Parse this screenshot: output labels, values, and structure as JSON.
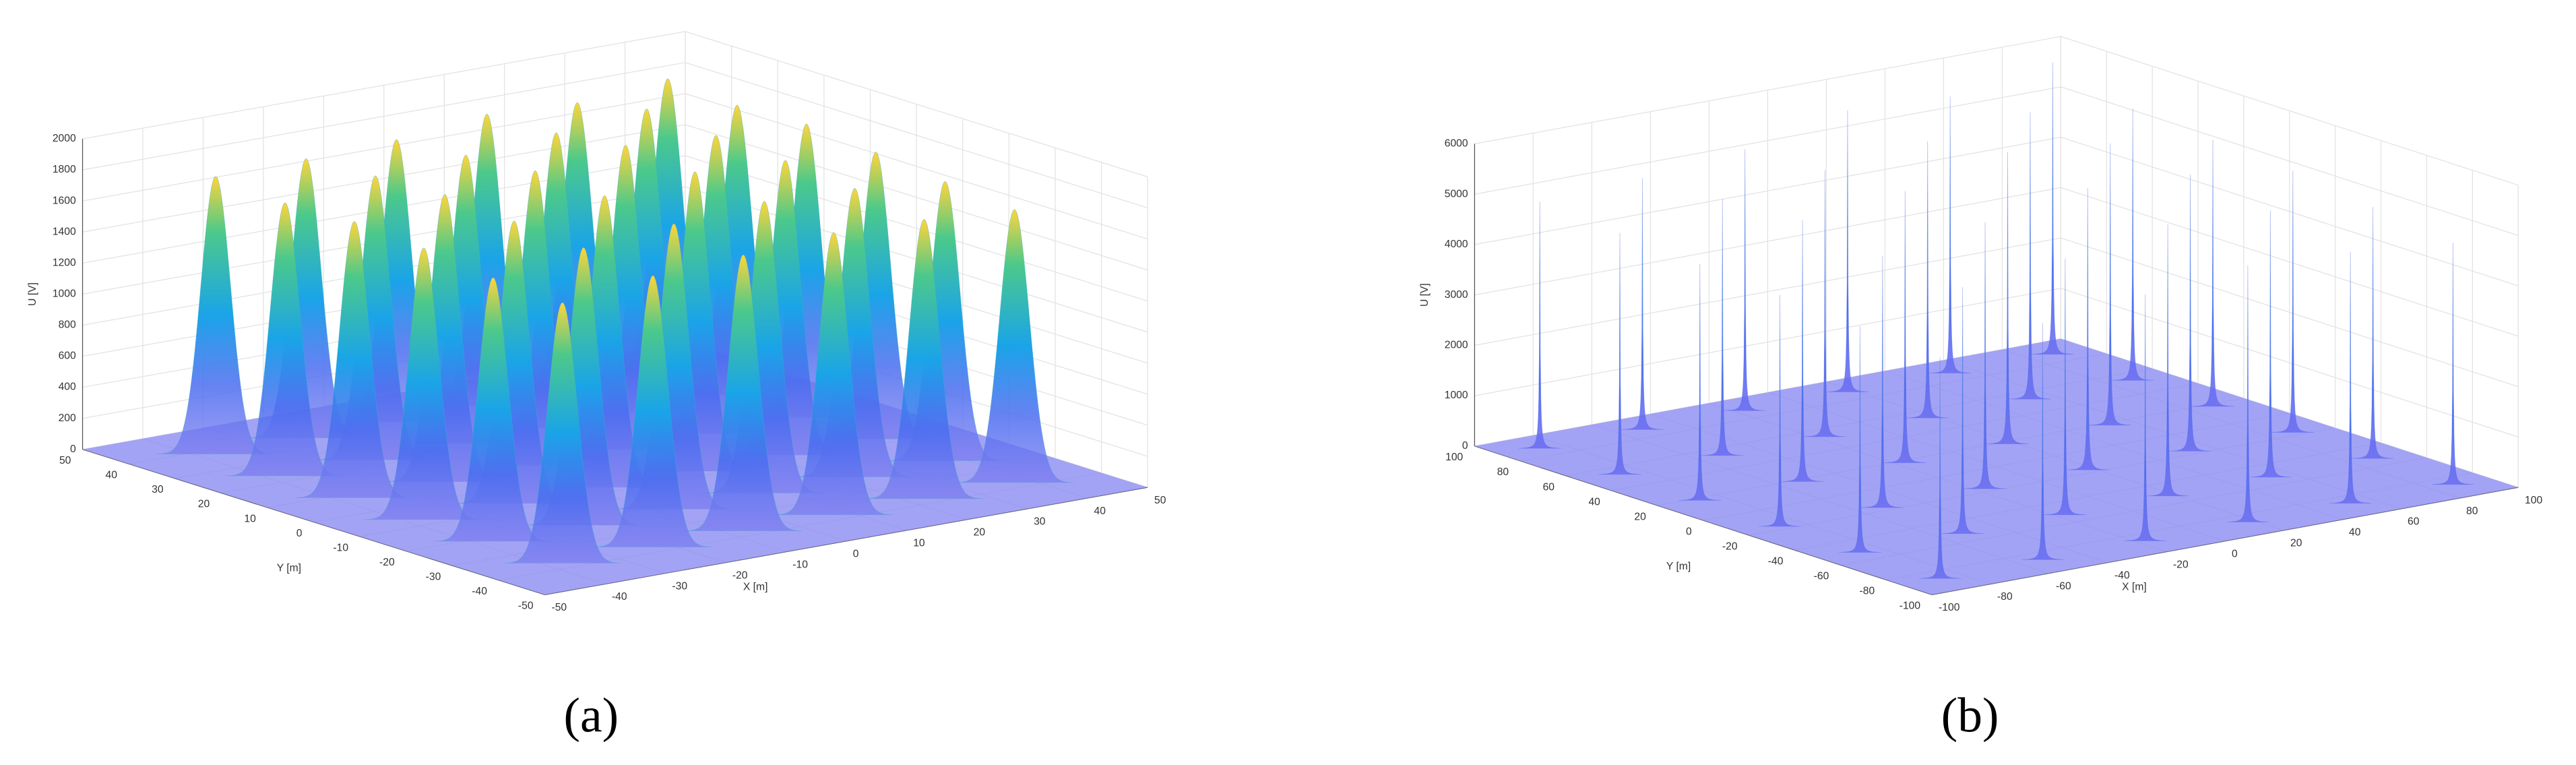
{
  "chart_data": [
    {
      "type": "surface",
      "caption": "(a)",
      "zlabel": "U [V]",
      "xlabel": "X [m]",
      "ylabel": "Y [m]",
      "xlim": [
        -50,
        50
      ],
      "ylim": [
        -50,
        50
      ],
      "zlim": [
        0,
        2000
      ],
      "xticks": [
        -50,
        -40,
        -30,
        -20,
        -10,
        0,
        10,
        20,
        30,
        40,
        50
      ],
      "yticks": [
        -50,
        -40,
        -30,
        -20,
        -10,
        0,
        10,
        20,
        30,
        40,
        50
      ],
      "zticks": [
        0,
        200,
        400,
        600,
        800,
        1000,
        1200,
        1400,
        1600,
        1800,
        2000
      ],
      "x": [
        37.5,
        22.5,
        7.5,
        -7.5,
        -22.5,
        -37.5,
        37.5,
        22.5,
        7.5,
        -7.5,
        -22.5,
        -37.5,
        37.5,
        22.5,
        7.5,
        -7.5,
        -22.5,
        -37.5,
        37.5,
        22.5,
        7.5,
        -7.5,
        -22.5,
        -37.5,
        37.5,
        22.5,
        7.5,
        -7.5,
        -22.5,
        -37.5,
        37.5,
        22.5,
        7.5,
        -7.5,
        -22.5,
        -37.5
      ],
      "y": [
        37.5,
        37.5,
        37.5,
        37.5,
        37.5,
        37.5,
        22.5,
        22.5,
        22.5,
        22.5,
        22.5,
        22.5,
        7.5,
        7.5,
        7.5,
        7.5,
        7.5,
        7.5,
        -7.5,
        -7.5,
        -7.5,
        -7.5,
        -7.5,
        -7.5,
        -22.5,
        -22.5,
        -22.5,
        -22.5,
        -22.5,
        -22.5,
        -37.5,
        -37.5,
        -37.5,
        -37.5,
        -37.5,
        -37.5
      ],
      "z": [
        1900,
        1850,
        1880,
        1820,
        1800,
        1790,
        1870,
        1950,
        1900,
        1860,
        1830,
        1760,
        1890,
        1920,
        1960,
        1900,
        1850,
        1780,
        1850,
        1900,
        1930,
        1880,
        1820,
        1750,
        1800,
        1860,
        1880,
        1840,
        1790,
        1700,
        1760,
        1800,
        1820,
        1780,
        1750,
        1680
      ]
    },
    {
      "type": "surface",
      "caption": "(b)",
      "zlabel": "U [V]",
      "xlabel": "X [m]",
      "ylabel": "Y [m]",
      "xlim": [
        -100,
        100
      ],
      "ylim": [
        -100,
        100
      ],
      "zlim": [
        0,
        6000
      ],
      "xticks": [
        -100,
        -80,
        -60,
        -40,
        -20,
        0,
        20,
        40,
        60,
        80,
        100
      ],
      "yticks": [
        -100,
        -80,
        -60,
        -40,
        -20,
        0,
        20,
        40,
        60,
        80,
        100
      ],
      "zticks": [
        0,
        1000,
        2000,
        3000,
        4000,
        5000,
        6000
      ],
      "x": [
        87.5,
        52.5,
        17.5,
        -17.5,
        -52.5,
        -87.5,
        87.5,
        52.5,
        17.5,
        -17.5,
        -52.5,
        -87.5,
        87.5,
        52.5,
        17.5,
        -17.5,
        -52.5,
        -87.5,
        87.5,
        52.5,
        17.5,
        -17.5,
        -52.5,
        -87.5,
        87.5,
        52.5,
        17.5,
        -17.5,
        -52.5,
        -87.5,
        87.5,
        52.5,
        17.5,
        -17.5,
        -52.5,
        -87.5
      ],
      "y": [
        87.5,
        87.5,
        87.5,
        87.5,
        87.5,
        87.5,
        52.5,
        52.5,
        52.5,
        52.5,
        52.5,
        52.5,
        17.5,
        17.5,
        17.5,
        17.5,
        17.5,
        17.5,
        -17.5,
        -17.5,
        -17.5,
        -17.5,
        -17.5,
        -17.5,
        -52.5,
        -52.5,
        -52.5,
        -52.5,
        -52.5,
        -52.5,
        -87.5,
        -87.5,
        -87.5,
        -87.5,
        -87.5,
        -87.5
      ],
      "z": [
        5800,
        5500,
        5600,
        5200,
        5000,
        4900,
        5400,
        5700,
        5500,
        5300,
        5100,
        4800,
        5300,
        5600,
        5800,
        5400,
        5200,
        4700,
        5200,
        5500,
        5600,
        5300,
        5000,
        4600,
        5000,
        5300,
        5400,
        5100,
        4900,
        4500,
        4800,
        5000,
        5100,
        4900,
        4700,
        4400
      ]
    }
  ]
}
